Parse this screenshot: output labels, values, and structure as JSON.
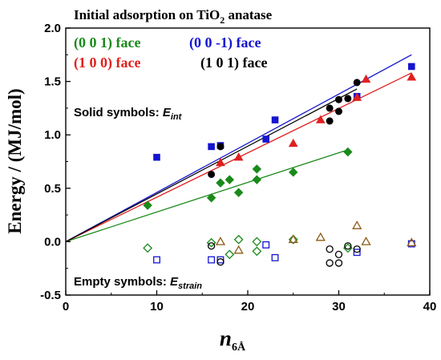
{
  "chart_data": {
    "type": "scatter",
    "title": {
      "main": "Initial adsorption on TiO",
      "sub": "2",
      "rest": " anatase"
    },
    "xlabel": {
      "main": "n",
      "sub": "6Å"
    },
    "ylabel": "Energy / (MJ/mol)",
    "xlim": [
      0,
      40
    ],
    "ylim": [
      -0.5,
      2.0
    ],
    "x_ticks": [
      0,
      10,
      20,
      30,
      40
    ],
    "y_ticks": [
      -0.5,
      0.0,
      0.5,
      1.0,
      1.5,
      2.0
    ],
    "x_tick_labels": [
      "0",
      "10",
      "20",
      "30",
      "40"
    ],
    "y_tick_labels": [
      "-0.5",
      "0.0",
      "0.5",
      "1.0",
      "1.5",
      "2.0"
    ],
    "grid": false,
    "legend_position": "top-left",
    "legend": [
      {
        "label": "(0 0 1) face",
        "color": "#1a8a1a"
      },
      {
        "label": "(0 0 -1) face",
        "color": "#1515d0"
      },
      {
        "label": "(1 0 0) face",
        "color": "#e02020"
      },
      {
        "label": "(1 0 1) face",
        "color": "#000000"
      }
    ],
    "annotations": {
      "solid": {
        "text": "Solid  symbols: ",
        "var": "E",
        "sub": "int"
      },
      "empty": {
        "text": "Empty symbols: ",
        "var": "E",
        "sub": "strain"
      }
    },
    "series": [
      {
        "name": "(0 0 1) face",
        "color": "#1a8a1a",
        "marker": "diamond",
        "kind": "E_int",
        "x": [
          9,
          16,
          17,
          18,
          19,
          21,
          21,
          25,
          31
        ],
        "y": [
          0.34,
          0.41,
          0.55,
          0.58,
          0.46,
          0.58,
          0.68,
          0.65,
          0.84
        ]
      },
      {
        "name": "(0 0 -1) face",
        "color": "#1515d0",
        "marker": "square",
        "kind": "E_int",
        "x": [
          10,
          16,
          17,
          22,
          23,
          32,
          38
        ],
        "y": [
          0.79,
          0.89,
          0.9,
          0.96,
          1.14,
          1.36,
          1.64
        ]
      },
      {
        "name": "(1 0 0) face",
        "color": "#e02020",
        "marker": "triangle",
        "kind": "E_int",
        "x": [
          17,
          19,
          25,
          28,
          32,
          33,
          38
        ],
        "y": [
          0.74,
          0.79,
          0.92,
          1.14,
          1.35,
          1.52,
          1.54
        ]
      },
      {
        "name": "(1 0 1) face",
        "color": "#000000",
        "marker": "circle",
        "kind": "E_int",
        "x": [
          16,
          17,
          29,
          29,
          30,
          30,
          31,
          32
        ],
        "y": [
          0.63,
          0.89,
          1.13,
          1.25,
          1.22,
          1.33,
          1.34,
          1.49
        ]
      },
      {
        "name": "(0 0 1) face",
        "color": "#1a8a1a",
        "marker": "diamond-open",
        "kind": "E_strain",
        "x": [
          9,
          16,
          18,
          19,
          21,
          21,
          25,
          31
        ],
        "y": [
          -0.06,
          -0.01,
          -0.12,
          0.02,
          0.0,
          -0.09,
          0.02,
          -0.06
        ]
      },
      {
        "name": "(0 0 -1) face",
        "color": "#1515d0",
        "marker": "square-open",
        "kind": "E_strain",
        "x": [
          10,
          16,
          17,
          22,
          23,
          32,
          38
        ],
        "y": [
          -0.17,
          -0.17,
          -0.17,
          -0.03,
          -0.15,
          -0.1,
          -0.02
        ]
      },
      {
        "name": "(1 0 0) face",
        "color": "#8b5a14",
        "marker": "triangle-open",
        "kind": "E_strain",
        "x": [
          17,
          19,
          25,
          28,
          32,
          33,
          38
        ],
        "y": [
          0.0,
          -0.08,
          0.02,
          0.04,
          0.15,
          0.0,
          -0.01
        ]
      },
      {
        "name": "(1 0 1) face",
        "color": "#000000",
        "marker": "circle-open",
        "kind": "E_strain",
        "x": [
          16,
          17,
          29,
          29,
          30,
          30,
          31,
          32
        ],
        "y": [
          -0.04,
          -0.19,
          -0.07,
          -0.2,
          -0.12,
          -0.2,
          -0.04,
          -0.07
        ]
      }
    ],
    "fit_lines": [
      {
        "name": "(0 0 1) face",
        "color": "#1a8a1a",
        "x": [
          0,
          31
        ],
        "y": [
          0.0,
          0.86
        ]
      },
      {
        "name": "(0 0 -1) face",
        "color": "#1515d0",
        "x": [
          0,
          38
        ],
        "y": [
          0.0,
          1.75
        ]
      },
      {
        "name": "(1 0 0) face",
        "color": "#e02020",
        "x": [
          0,
          38
        ],
        "y": [
          0.0,
          1.58
        ]
      },
      {
        "name": "(1 0 1) face",
        "color": "#000000",
        "x": [
          0,
          32
        ],
        "y": [
          0.0,
          1.43
        ]
      }
    ]
  }
}
